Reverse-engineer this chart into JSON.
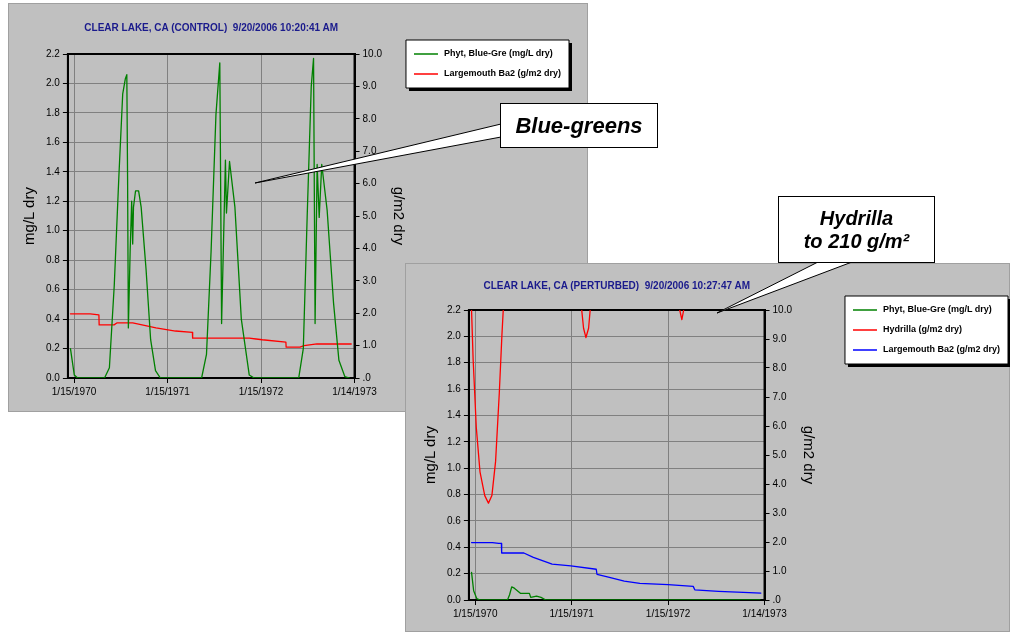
{
  "chart_data": [
    {
      "type": "line",
      "title": "CLEAR LAKE, CA (CONTROL)  9/20/2006 10:20:41 AM",
      "ylabel": "mg/L dry",
      "y2label": "g/m2 dry",
      "legend": "top right",
      "grid": true,
      "marker": "none",
      "annotations": [
        "Blue-greens"
      ],
      "xlim": [
        "1969-12-22",
        "1973-01-14"
      ],
      "xticks": [
        {
          "value": "1970-01-15",
          "label": "1/15/1970"
        },
        {
          "value": "1971-01-15",
          "label": "1/15/1971"
        },
        {
          "value": "1972-01-15",
          "label": "1/15/1972"
        },
        {
          "value": "1973-01-14",
          "label": "1/14/1973"
        }
      ],
      "ylim": [
        0,
        2.2
      ],
      "yticks": [
        {
          "value": 0,
          "label": "0.0"
        },
        0.2,
        0.4,
        0.6,
        0.8,
        {
          "value": 1,
          "label": "1.0"
        },
        1.2,
        1.4,
        1.6,
        1.8,
        {
          "value": 2,
          "label": "2.0"
        },
        2.2
      ],
      "y2lim": [
        0,
        10
      ],
      "y2ticks": [
        {
          "value": 0,
          "label": ".0"
        },
        {
          "value": 1,
          "label": "1.0"
        },
        {
          "value": 2,
          "label": "2.0"
        },
        {
          "value": 3,
          "label": "3.0"
        },
        {
          "value": 4,
          "label": "4.0"
        },
        {
          "value": 5,
          "label": "5.0"
        },
        {
          "value": 6,
          "label": "6.0"
        },
        {
          "value": 7,
          "label": "7.0"
        },
        {
          "value": 8,
          "label": "8.0"
        },
        {
          "value": 9,
          "label": "9.0"
        },
        {
          "value": 10,
          "label": "10.0"
        }
      ],
      "series": [
        {
          "name": "Phyt, Blue-Gre (mg/L dry)",
          "color": "#008000",
          "x": [
            "1970-01-01",
            "1970-01-16",
            "1970-01-29",
            "1970-05-14",
            "1970-06-02",
            "1970-06-21",
            "1970-07-09",
            "1970-07-24",
            "1970-08-03",
            "1970-08-09",
            "1970-08-12",
            "1970-08-15",
            "1970-08-22",
            "1970-08-28",
            "1970-09-01",
            "1970-09-04",
            "1970-09-12",
            "1970-09-24",
            "1970-10-04",
            "1970-10-23",
            "1970-11-10",
            "1970-11-29",
            "1970-12-18",
            "1971-05-28",
            "1971-06-16",
            "1971-07-04",
            "1971-07-23",
            "1971-08-07",
            "1971-08-14",
            "1971-08-29",
            "1971-09-02",
            "1971-09-14",
            "1971-10-05",
            "1971-10-30",
            "1971-11-30",
            "1971-12-19",
            "1972-06-10",
            "1972-06-28",
            "1972-07-13",
            "1972-07-29",
            "1972-08-07",
            "1972-08-13",
            "1972-08-21",
            "1972-08-29",
            "1972-09-08",
            "1972-09-29",
            "1972-10-24",
            "1972-11-14",
            "1972-12-07",
            "1972-12-25"
          ],
          "values": [
            0.2,
            0.02,
            0,
            0,
            0.07,
            0.63,
            1.37,
            1.93,
            2.03,
            2.06,
            1.35,
            0.34,
            0.86,
            1.2,
            0.91,
            1.16,
            1.27,
            1.27,
            1.16,
            0.74,
            0.26,
            0.05,
            0,
            0,
            0.16,
            0.86,
            1.79,
            2.14,
            0.37,
            1.48,
            1.12,
            1.47,
            1.16,
            0.4,
            0.02,
            0,
            0,
            0.2,
            1.09,
            1.98,
            2.17,
            0.37,
            1.45,
            1.09,
            1.45,
            1.14,
            0.51,
            0.12,
            0.01,
            0
          ]
        },
        {
          "name": "Largemouth Ba2 (g/m2 dry)",
          "color": "#ff0000",
          "axis": "y2",
          "x": [
            "1970-01-01",
            "1970-03-19",
            "1970-04-22",
            "1970-04-23",
            "1970-06-20",
            "1970-07-01",
            "1970-09-01",
            "1970-12-01",
            "1971-02-15",
            "1971-04-22",
            "1971-04-23",
            "1971-11-30",
            "1972-01-20",
            "1972-04-21",
            "1972-04-22",
            "1972-06-15",
            "1972-07-01",
            "1972-08-20",
            "1973-01-01"
          ],
          "values": [
            1.98,
            1.98,
            1.95,
            1.64,
            1.64,
            1.7,
            1.7,
            1.55,
            1.45,
            1.41,
            1.23,
            1.23,
            1.18,
            1.11,
            0.95,
            0.95,
            1.0,
            1.05,
            1.05
          ]
        }
      ]
    },
    {
      "type": "line",
      "title": "CLEAR LAKE, CA (PERTURBED)  9/20/2006 10:27:47 AM",
      "ylabel": "mg/L dry",
      "y2label": "g/m2 dry",
      "legend": "top right",
      "grid": true,
      "marker": "none",
      "annotations": [
        "Hydrilla\nto 210 g/m²"
      ],
      "xlim": [
        "1969-12-22",
        "1973-01-14"
      ],
      "xticks": [
        {
          "value": "1970-01-15",
          "label": "1/15/1970"
        },
        {
          "value": "1971-01-15",
          "label": "1/15/1971"
        },
        {
          "value": "1972-01-15",
          "label": "1/15/1972"
        },
        {
          "value": "1973-01-14",
          "label": "1/14/1973"
        }
      ],
      "ylim": [
        0,
        2.2
      ],
      "yticks": [
        {
          "value": 0,
          "label": "0.0"
        },
        0.2,
        0.4,
        0.6,
        0.8,
        {
          "value": 1,
          "label": "1.0"
        },
        1.2,
        1.4,
        1.6,
        1.8,
        {
          "value": 2,
          "label": "2.0"
        },
        2.2
      ],
      "y2lim": [
        0,
        10
      ],
      "y2ticks": [
        {
          "value": 0,
          "label": ".0"
        },
        {
          "value": 1,
          "label": "1.0"
        },
        {
          "value": 2,
          "label": "2.0"
        },
        {
          "value": 3,
          "label": "3.0"
        },
        {
          "value": 4,
          "label": "4.0"
        },
        {
          "value": 5,
          "label": "5.0"
        },
        {
          "value": 6,
          "label": "6.0"
        },
        {
          "value": 7,
          "label": "7.0"
        },
        {
          "value": 8,
          "label": "8.0"
        },
        {
          "value": 9,
          "label": "9.0"
        },
        {
          "value": 10,
          "label": "10.0"
        }
      ],
      "series": [
        {
          "name": "Phyt, Blue-Gre (mg/L dry)",
          "color": "#008000",
          "x": [
            "1970-01-01",
            "1970-01-09",
            "1970-01-21",
            "1970-02-02",
            "1970-05-17",
            "1970-05-25",
            "1970-06-02",
            "1970-06-12",
            "1970-07-06",
            "1970-08-05",
            "1970-08-08",
            "1970-08-13",
            "1970-09-04",
            "1970-09-21",
            "1970-10-09",
            "1972-12-28"
          ],
          "values": [
            0.21,
            0.07,
            0.01,
            0,
            0,
            0.04,
            0.1,
            0.09,
            0.05,
            0.05,
            0.05,
            0.02,
            0.03,
            0.02,
            0,
            0
          ]
        },
        {
          "name": "Hydrilla (g/m2 dry)",
          "color": "#ff0000",
          "axis": "y2",
          "x": [
            "1970-01-01",
            "1970-01-07",
            "1970-01-19",
            "1970-02-02",
            "1970-02-20",
            "1970-03-06",
            "1970-03-19",
            "1970-04-02",
            "1970-04-16",
            "1970-04-26",
            "1970-05-01",
            "1970-06-01",
            "1971-02-22",
            "1971-03-01",
            "1971-03-10",
            "1971-03-20",
            "1971-03-26",
            "1971-06-01",
            "1972-02-28",
            "1972-03-07",
            "1972-03-14"
          ],
          "values": [
            10,
            8.3,
            5.95,
            4.42,
            3.6,
            3.34,
            3.6,
            4.78,
            7.13,
            9.14,
            10,
            null,
            10,
            9.37,
            9.05,
            9.37,
            10,
            null,
            10,
            9.67,
            10
          ]
        },
        {
          "name": "Largemouth Ba2 (g/m2 dry)",
          "color": "#0000ff",
          "axis": "y2",
          "x": [
            "1970-01-01",
            "1970-03-21",
            "1970-04-14",
            "1970-04-24",
            "1970-04-25",
            "1970-07-18",
            "1970-08-23",
            "1970-11-02",
            "1971-01-12",
            "1971-04-18",
            "1971-04-21",
            "1971-06-03",
            "1971-08-02",
            "1971-09-30",
            "1972-01-15",
            "1972-04-19",
            "1972-04-25",
            "1972-07-24",
            "1972-10-26",
            "1972-12-31"
          ],
          "values": [
            1.98,
            1.98,
            1.95,
            1.95,
            1.62,
            1.62,
            1.47,
            1.24,
            1.18,
            1.06,
            0.88,
            0.79,
            0.65,
            0.57,
            0.53,
            0.47,
            0.35,
            0.3,
            0.26,
            0.24
          ]
        }
      ]
    }
  ]
}
